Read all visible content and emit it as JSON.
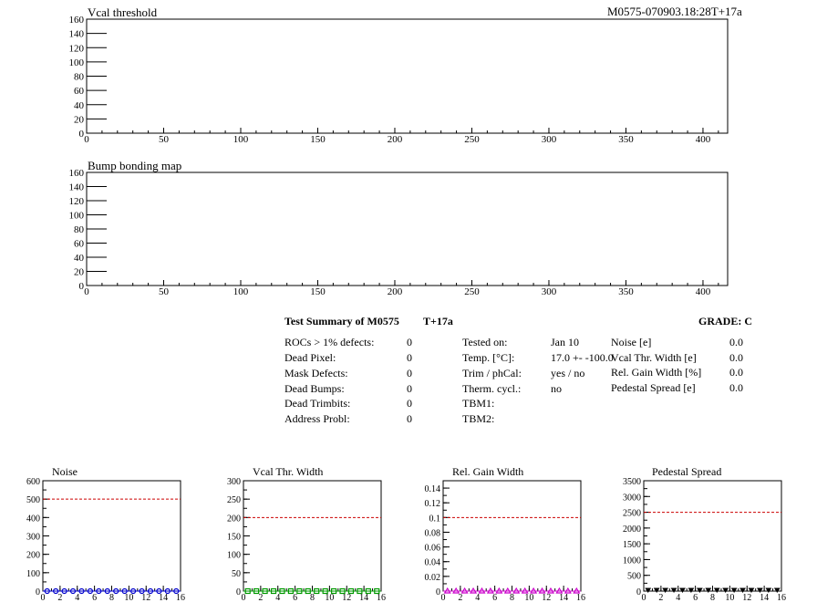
{
  "header": {
    "run_id": "M0575-070903.18:28T+17a"
  },
  "colors": {
    "noise_marker": "#0000cc",
    "vcal_marker": "#009900",
    "gain_marker": "#cc00cc",
    "pedestal_marker": "#000000",
    "limit_line": "#cc0000"
  },
  "summary": {
    "title": "Test Summary of M0575",
    "temp_tag": "T+17a",
    "grade": "GRADE:  C",
    "col1": [
      {
        "label": "ROCs > 1% defects:",
        "value": "0"
      },
      {
        "label": "Dead Pixel:",
        "value": "0"
      },
      {
        "label": "Mask Defects:",
        "value": "0"
      },
      {
        "label": "Dead Bumps:",
        "value": "0"
      },
      {
        "label": "Dead Trimbits:",
        "value": "0"
      },
      {
        "label": "Address Probl:",
        "value": "0"
      }
    ],
    "col2": [
      {
        "label": "Tested on:",
        "value": "Jan 10"
      },
      {
        "label": "Temp. [°C]:",
        "value": "17.0 +- -100.0"
      },
      {
        "label": "Trim / phCal:",
        "value": "yes / no"
      },
      {
        "label": "Therm. cycl.:",
        "value": "no"
      },
      {
        "label": "TBM1:",
        "value": ""
      },
      {
        "label": "TBM2:",
        "value": ""
      }
    ],
    "col3": [
      {
        "label": "Noise [e]",
        "value": "0.0"
      },
      {
        "label": "Vcal Thr. Width [e]",
        "value": "0.0"
      },
      {
        "label": "Rel. Gain Width [%]",
        "value": "0.0"
      },
      {
        "label": "Pedestal Spread [e]",
        "value": "0.0"
      }
    ]
  },
  "chart_data": [
    {
      "id": "vcal-threshold-map",
      "type": "heatmap",
      "title": "Vcal threshold",
      "xlim": [
        0,
        416
      ],
      "ylim": [
        0,
        160
      ],
      "xticks": [
        0,
        50,
        100,
        150,
        200,
        250,
        300,
        350,
        400
      ],
      "yticks": [
        0,
        20,
        40,
        60,
        80,
        100,
        120,
        140,
        160
      ],
      "values": []
    },
    {
      "id": "bump-bonding-map",
      "type": "heatmap",
      "title": "Bump bonding map",
      "xlim": [
        0,
        416
      ],
      "ylim": [
        0,
        160
      ],
      "xticks": [
        0,
        50,
        100,
        150,
        200,
        250,
        300,
        350,
        400
      ],
      "yticks": [
        0,
        20,
        40,
        60,
        80,
        100,
        120,
        140,
        160
      ],
      "values": []
    },
    {
      "id": "noise",
      "type": "scatter",
      "title": "Noise",
      "xlim": [
        0,
        16
      ],
      "ylim": [
        0,
        600
      ],
      "xticks": [
        0,
        2,
        4,
        6,
        8,
        10,
        12,
        14,
        16
      ],
      "yticks": [
        0,
        100,
        200,
        300,
        400,
        500,
        600
      ],
      "ytick_labels": [
        "0",
        "100",
        "200",
        "300",
        "400",
        "500",
        "600"
      ],
      "limit": 500,
      "marker": "circle",
      "x": [
        0,
        1,
        2,
        3,
        4,
        5,
        6,
        7,
        8,
        9,
        10,
        11,
        12,
        13,
        14,
        15
      ],
      "y": [
        0,
        0,
        0,
        0,
        0,
        0,
        0,
        0,
        0,
        0,
        0,
        0,
        0,
        0,
        0,
        0
      ]
    },
    {
      "id": "vcal-thr-width",
      "type": "scatter",
      "title": "Vcal Thr. Width",
      "xlim": [
        0,
        16
      ],
      "ylim": [
        0,
        300
      ],
      "xticks": [
        0,
        2,
        4,
        6,
        8,
        10,
        12,
        14,
        16
      ],
      "yticks": [
        0,
        50,
        100,
        150,
        200,
        250,
        300
      ],
      "ytick_labels": [
        "0",
        "50",
        "100",
        "150",
        "200",
        "250",
        "300"
      ],
      "limit": 200,
      "marker": "square",
      "x": [
        0,
        1,
        2,
        3,
        4,
        5,
        6,
        7,
        8,
        9,
        10,
        11,
        12,
        13,
        14,
        15
      ],
      "y": [
        0,
        0,
        0,
        0,
        0,
        0,
        0,
        0,
        0,
        0,
        0,
        0,
        0,
        0,
        0,
        0
      ]
    },
    {
      "id": "rel-gain-width",
      "type": "scatter",
      "title": "Rel. Gain Width",
      "xlim": [
        0,
        16
      ],
      "ylim": [
        0,
        0.15
      ],
      "xticks": [
        0,
        2,
        4,
        6,
        8,
        10,
        12,
        14,
        16
      ],
      "yticks": [
        0,
        0.02,
        0.04,
        0.06,
        0.08,
        0.1,
        0.12,
        0.14
      ],
      "ytick_labels": [
        "0",
        "0.02",
        "0.04",
        "0.06",
        "0.08",
        "0.1",
        "0.12",
        "0.14"
      ],
      "limit": 0.1,
      "marker": "triangle",
      "x": [
        0,
        1,
        2,
        3,
        4,
        5,
        6,
        7,
        8,
        9,
        10,
        11,
        12,
        13,
        14,
        15
      ],
      "y": [
        0,
        0,
        0,
        0,
        0,
        0,
        0,
        0,
        0,
        0,
        0,
        0,
        0,
        0,
        0,
        0
      ]
    },
    {
      "id": "pedestal-spread",
      "type": "scatter",
      "title": "Pedestal Spread",
      "xlim": [
        0,
        16
      ],
      "ylim": [
        0,
        3500
      ],
      "xticks": [
        0,
        2,
        4,
        6,
        8,
        10,
        12,
        14,
        16
      ],
      "yticks": [
        0,
        500,
        1000,
        1500,
        2000,
        2500,
        3000,
        3500
      ],
      "ytick_labels": [
        "0",
        "500",
        "1000",
        "1500",
        "2000",
        "2500",
        "3000",
        "3500"
      ],
      "limit": 2500,
      "marker": "triangle-down",
      "x": [
        0,
        1,
        2,
        3,
        4,
        5,
        6,
        7,
        8,
        9,
        10,
        11,
        12,
        13,
        14,
        15
      ],
      "y": [
        0,
        0,
        0,
        0,
        0,
        0,
        0,
        0,
        0,
        0,
        0,
        0,
        0,
        0,
        0,
        0
      ]
    }
  ]
}
